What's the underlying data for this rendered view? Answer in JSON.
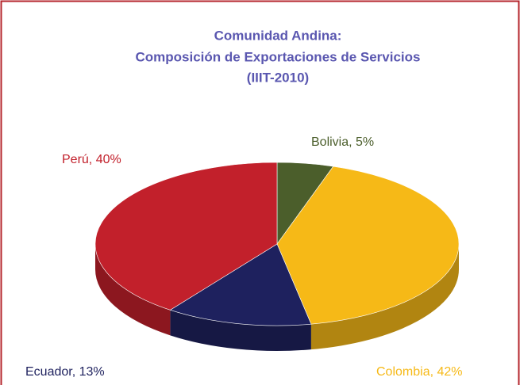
{
  "chart_data": {
    "type": "pie",
    "title": [
      "Comunidad Andina:",
      "Composición de Exportaciones de Servicios",
      "(IIIT-2010)"
    ],
    "categories": [
      "Bolivia",
      "Colombia",
      "Ecuador",
      "Perú"
    ],
    "values": [
      5,
      42,
      13,
      40
    ],
    "value_labels": [
      "Bolivia, 5%",
      "Colombia, 42%",
      "Ecuador, 13%",
      "Perú, 40%"
    ],
    "colors": [
      "#4b5e2b",
      "#f6b917",
      "#1e215e",
      "#c2202b"
    ]
  }
}
